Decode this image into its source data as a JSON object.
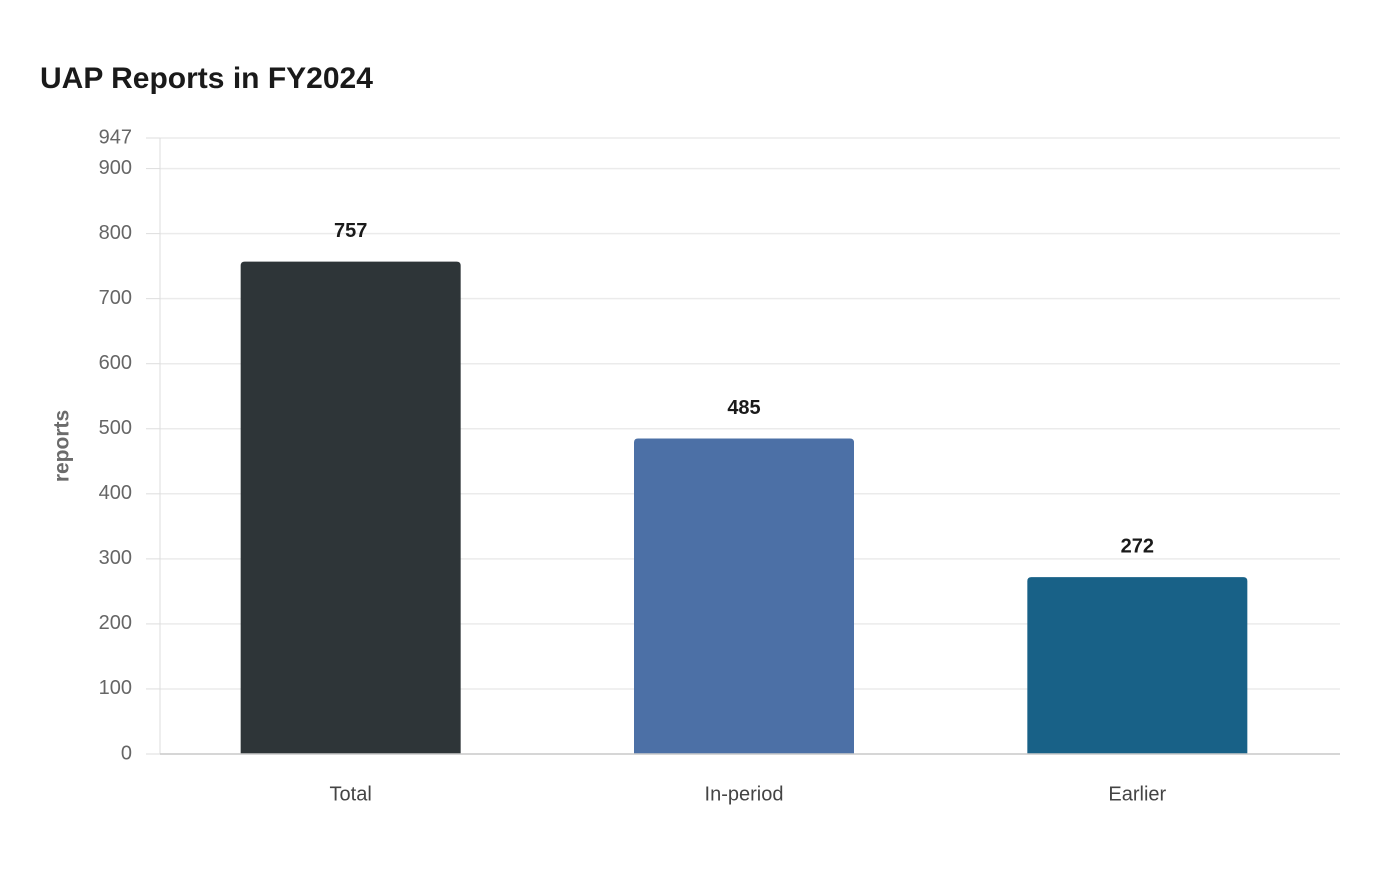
{
  "chart_data": {
    "type": "bar",
    "title": "UAP Reports in FY2024",
    "y_label": "reports",
    "categories": [
      "Total",
      "In-period",
      "Earlier"
    ],
    "values": [
      757,
      485,
      272
    ],
    "colors": [
      "#2e3538",
      "#4c70a6",
      "#186187"
    ],
    "ylim": [
      0,
      947
    ],
    "yticks": [
      0,
      100,
      200,
      300,
      400,
      500,
      600,
      700,
      800,
      900,
      947
    ],
    "grid": true
  }
}
